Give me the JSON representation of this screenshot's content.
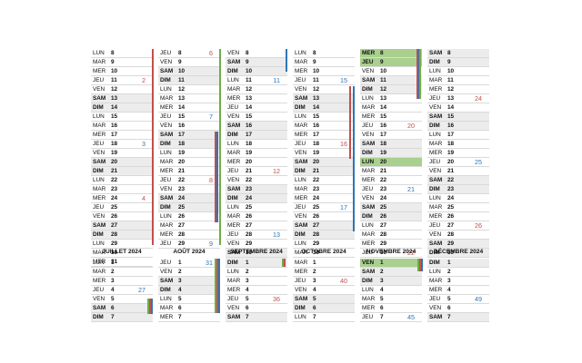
{
  "top": [
    {
      "id": "jan",
      "rows": [
        [
          "LUN",
          "8",
          ""
        ],
        [
          "MAR",
          "9",
          ""
        ],
        [
          "MER",
          "10",
          ""
        ],
        [
          "JEU",
          "11",
          "2",
          "r"
        ],
        [
          "VEN",
          "12",
          ""
        ],
        [
          "SAM",
          "13",
          ""
        ],
        [
          "DIM",
          "14",
          ""
        ],
        [
          "LUN",
          "15",
          ""
        ],
        [
          "MAR",
          "16",
          ""
        ],
        [
          "MER",
          "17",
          ""
        ],
        [
          "JEU",
          "18",
          "3",
          "b"
        ],
        [
          "VEN",
          "19",
          ""
        ],
        [
          "SAM",
          "20",
          ""
        ],
        [
          "DIM",
          "21",
          ""
        ],
        [
          "LUN",
          "22",
          ""
        ],
        [
          "MAR",
          "23",
          ""
        ],
        [
          "MER",
          "24",
          "4",
          "r"
        ],
        [
          "JEU",
          "25",
          ""
        ],
        [
          "VEN",
          "26",
          ""
        ],
        [
          "SAM",
          "27",
          ""
        ],
        [
          "DIM",
          "28",
          ""
        ],
        [
          "LUN",
          "29",
          ""
        ],
        [
          "MAR",
          "30",
          ""
        ],
        [
          "MER",
          "31",
          ""
        ]
      ]
    },
    {
      "id": "feb",
      "rows": [
        [
          "JEU",
          "8",
          "6",
          "r"
        ],
        [
          "VEN",
          "9",
          ""
        ],
        [
          "SAM",
          "10",
          ""
        ],
        [
          "DIM",
          "11",
          ""
        ],
        [
          "LUN",
          "12",
          ""
        ],
        [
          "MAR",
          "13",
          ""
        ],
        [
          "MER",
          "14",
          ""
        ],
        [
          "JEU",
          "15",
          "7",
          "b"
        ],
        [
          "VEN",
          "16",
          ""
        ],
        [
          "SAM",
          "17",
          ""
        ],
        [
          "DIM",
          "18",
          ""
        ],
        [
          "LUN",
          "19",
          ""
        ],
        [
          "MAR",
          "20",
          ""
        ],
        [
          "MER",
          "21",
          ""
        ],
        [
          "JEU",
          "22",
          "8",
          "r"
        ],
        [
          "VEN",
          "23",
          ""
        ],
        [
          "SAM",
          "24",
          ""
        ],
        [
          "DIM",
          "25",
          ""
        ],
        [
          "LUN",
          "26",
          ""
        ],
        [
          "MAR",
          "27",
          ""
        ],
        [
          "MER",
          "28",
          ""
        ],
        [
          "JEU",
          "29",
          "9",
          "b"
        ]
      ]
    },
    {
      "id": "mar",
      "rows": [
        [
          "VEN",
          "8",
          ""
        ],
        [
          "SAM",
          "9",
          ""
        ],
        [
          "DIM",
          "10",
          ""
        ],
        [
          "LUN",
          "11",
          "11",
          "b"
        ],
        [
          "MAR",
          "12",
          ""
        ],
        [
          "MER",
          "13",
          ""
        ],
        [
          "JEU",
          "14",
          ""
        ],
        [
          "VEN",
          "15",
          ""
        ],
        [
          "SAM",
          "16",
          ""
        ],
        [
          "DIM",
          "17",
          ""
        ],
        [
          "LUN",
          "18",
          ""
        ],
        [
          "MAR",
          "19",
          ""
        ],
        [
          "MER",
          "20",
          ""
        ],
        [
          "JEU",
          "21",
          "12",
          "r"
        ],
        [
          "VEN",
          "22",
          ""
        ],
        [
          "SAM",
          "23",
          ""
        ],
        [
          "DIM",
          "24",
          ""
        ],
        [
          "LUN",
          "25",
          ""
        ],
        [
          "MAR",
          "26",
          ""
        ],
        [
          "MER",
          "27",
          ""
        ],
        [
          "JEU",
          "28",
          "13",
          "b"
        ],
        [
          "VEN",
          "29",
          ""
        ],
        [
          "SAM",
          "30",
          ""
        ],
        [
          "DIM",
          "31",
          ""
        ]
      ]
    },
    {
      "id": "apr",
      "rows": [
        [
          "LUN",
          "8",
          ""
        ],
        [
          "MAR",
          "9",
          ""
        ],
        [
          "MER",
          "10",
          ""
        ],
        [
          "JEU",
          "11",
          "15",
          "b"
        ],
        [
          "VEN",
          "12",
          ""
        ],
        [
          "SAM",
          "13",
          ""
        ],
        [
          "DIM",
          "14",
          ""
        ],
        [
          "LUN",
          "15",
          ""
        ],
        [
          "MAR",
          "16",
          ""
        ],
        [
          "MER",
          "17",
          ""
        ],
        [
          "JEU",
          "18",
          "16",
          "r"
        ],
        [
          "VEN",
          "19",
          ""
        ],
        [
          "SAM",
          "20",
          ""
        ],
        [
          "DIM",
          "21",
          ""
        ],
        [
          "LUN",
          "22",
          ""
        ],
        [
          "MAR",
          "23",
          ""
        ],
        [
          "MER",
          "24",
          ""
        ],
        [
          "JEU",
          "25",
          "17",
          "b"
        ],
        [
          "VEN",
          "26",
          ""
        ],
        [
          "SAM",
          "27",
          ""
        ],
        [
          "DIM",
          "28",
          ""
        ],
        [
          "LUN",
          "29",
          ""
        ],
        [
          "MAR",
          "30",
          ""
        ]
      ]
    },
    {
      "id": "may",
      "rows": [
        [
          "MER",
          "8",
          "",
          "",
          "hl"
        ],
        [
          "JEU",
          "9",
          "",
          "",
          "hl"
        ],
        [
          "VEN",
          "10",
          ""
        ],
        [
          "SAM",
          "11",
          ""
        ],
        [
          "DIM",
          "12",
          ""
        ],
        [
          "LUN",
          "13",
          ""
        ],
        [
          "MAR",
          "14",
          ""
        ],
        [
          "MER",
          "15",
          ""
        ],
        [
          "JEU",
          "16",
          "20",
          "r"
        ],
        [
          "VEN",
          "17",
          ""
        ],
        [
          "SAM",
          "18",
          ""
        ],
        [
          "DIM",
          "19",
          ""
        ],
        [
          "LUN",
          "20",
          "",
          "",
          "hl"
        ],
        [
          "MAR",
          "21",
          ""
        ],
        [
          "MER",
          "22",
          ""
        ],
        [
          "JEU",
          "23",
          "21",
          "b"
        ],
        [
          "VEN",
          "24",
          ""
        ],
        [
          "SAM",
          "25",
          ""
        ],
        [
          "DIM",
          "26",
          ""
        ],
        [
          "LUN",
          "27",
          ""
        ],
        [
          "MAR",
          "28",
          ""
        ],
        [
          "MER",
          "29",
          ""
        ],
        [
          "JEU",
          "30",
          "22",
          "r"
        ],
        [
          "VEN",
          "31",
          ""
        ]
      ]
    },
    {
      "id": "jun",
      "rows": [
        [
          "SAM",
          "8",
          ""
        ],
        [
          "DIM",
          "9",
          ""
        ],
        [
          "LUN",
          "10",
          ""
        ],
        [
          "MAR",
          "11",
          ""
        ],
        [
          "MER",
          "12",
          ""
        ],
        [
          "JEU",
          "13",
          "24",
          "r"
        ],
        [
          "VEN",
          "14",
          ""
        ],
        [
          "SAM",
          "15",
          ""
        ],
        [
          "DIM",
          "16",
          ""
        ],
        [
          "LUN",
          "17",
          ""
        ],
        [
          "MAR",
          "18",
          ""
        ],
        [
          "MER",
          "19",
          ""
        ],
        [
          "JEU",
          "20",
          "25",
          "b"
        ],
        [
          "VEN",
          "21",
          ""
        ],
        [
          "SAM",
          "22",
          ""
        ],
        [
          "DIM",
          "23",
          ""
        ],
        [
          "LUN",
          "24",
          ""
        ],
        [
          "MAR",
          "25",
          ""
        ],
        [
          "MER",
          "26",
          ""
        ],
        [
          "JEU",
          "27",
          "26",
          "r"
        ],
        [
          "VEN",
          "28",
          ""
        ],
        [
          "SAM",
          "29",
          ""
        ],
        [
          "DIM",
          "30",
          ""
        ]
      ]
    }
  ],
  "bottom": [
    {
      "id": "jul",
      "title": "JUILLET 2024",
      "rows": [
        [
          "LUN",
          "1",
          ""
        ],
        [
          "MAR",
          "2",
          ""
        ],
        [
          "MER",
          "3",
          ""
        ],
        [
          "JEU",
          "4",
          "27",
          "b"
        ],
        [
          "VEN",
          "5",
          ""
        ],
        [
          "SAM",
          "6",
          ""
        ],
        [
          "DIM",
          "7",
          ""
        ]
      ]
    },
    {
      "id": "aug",
      "title": "AOÛT 2024",
      "rows": [
        [
          "JEU",
          "1",
          "31",
          "b"
        ],
        [
          "VEN",
          "2",
          ""
        ],
        [
          "SAM",
          "3",
          ""
        ],
        [
          "DIM",
          "4",
          ""
        ],
        [
          "LUN",
          "5",
          ""
        ],
        [
          "MAR",
          "6",
          ""
        ],
        [
          "MER",
          "7",
          ""
        ]
      ]
    },
    {
      "id": "sep",
      "title": "SEPTEMBRE 2024",
      "rows": [
        [
          "DIM",
          "1",
          ""
        ],
        [
          "LUN",
          "2",
          ""
        ],
        [
          "MAR",
          "3",
          ""
        ],
        [
          "MER",
          "4",
          ""
        ],
        [
          "JEU",
          "5",
          "36",
          "r"
        ],
        [
          "VEN",
          "6",
          ""
        ],
        [
          "SAM",
          "7",
          ""
        ]
      ]
    },
    {
      "id": "oct",
      "title": "OCTOBRE 2024",
      "rows": [
        [
          "MAR",
          "1",
          ""
        ],
        [
          "MER",
          "2",
          ""
        ],
        [
          "JEU",
          "3",
          "40",
          "r"
        ],
        [
          "VEN",
          "4",
          ""
        ],
        [
          "SAM",
          "5",
          ""
        ],
        [
          "DIM",
          "6",
          ""
        ],
        [
          "LUN",
          "7",
          ""
        ]
      ]
    },
    {
      "id": "nov",
      "title": "NOVEMBRE 2024",
      "rows": [
        [
          "VEN",
          "1",
          "",
          "",
          "hl"
        ],
        [
          "SAM",
          "2",
          ""
        ],
        [
          "DIM",
          "3",
          ""
        ],
        [
          "LUN",
          "4",
          ""
        ],
        [
          "MAR",
          "5",
          ""
        ],
        [
          "MER",
          "6",
          ""
        ],
        [
          "JEU",
          "7",
          "45",
          "b"
        ]
      ]
    },
    {
      "id": "dec",
      "title": "DÉCEMBRE 2024",
      "rows": [
        [
          "DIM",
          "1",
          ""
        ],
        [
          "LUN",
          "2",
          ""
        ],
        [
          "MAR",
          "3",
          ""
        ],
        [
          "MER",
          "4",
          ""
        ],
        [
          "JEU",
          "5",
          "49",
          "b"
        ],
        [
          "VEN",
          "6",
          ""
        ],
        [
          "SAM",
          "7",
          ""
        ]
      ]
    }
  ],
  "colors": {
    "holiday": "#a9d08e",
    "weekend": "#ececec",
    "red": "#c0504d",
    "blue": "#2e75b6",
    "green": "#70ad47"
  }
}
